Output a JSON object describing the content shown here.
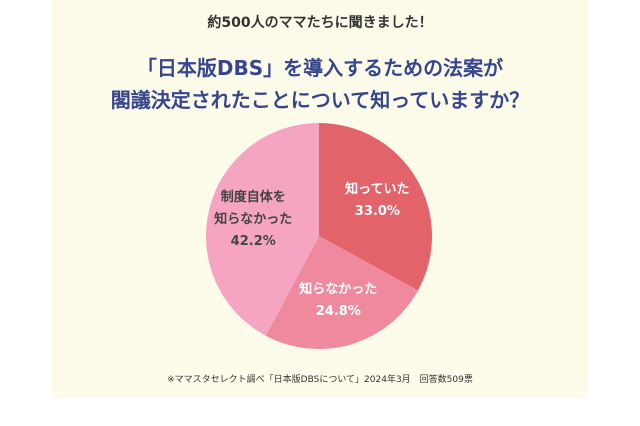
{
  "chart_data": {
    "type": "pie",
    "subtitle": "約500人のママたちに聞きました！",
    "title": "「日本版DBS」を導入するための法案が\n閣議決定されたことについて知っていますか？",
    "categories": [
      "知っていた",
      "知らなかった",
      "制度自体を\n知らなかった"
    ],
    "values": [
      33.0,
      24.8,
      42.2
    ],
    "value_labels": [
      "33.0%",
      "24.8%",
      "42.2%"
    ],
    "colors": [
      "#e2636a",
      "#ef8a9e",
      "#f5a5c1"
    ],
    "source": "※ママスタセレクト調べ「日本版DBSについて」2024年3月　回答数509票"
  }
}
